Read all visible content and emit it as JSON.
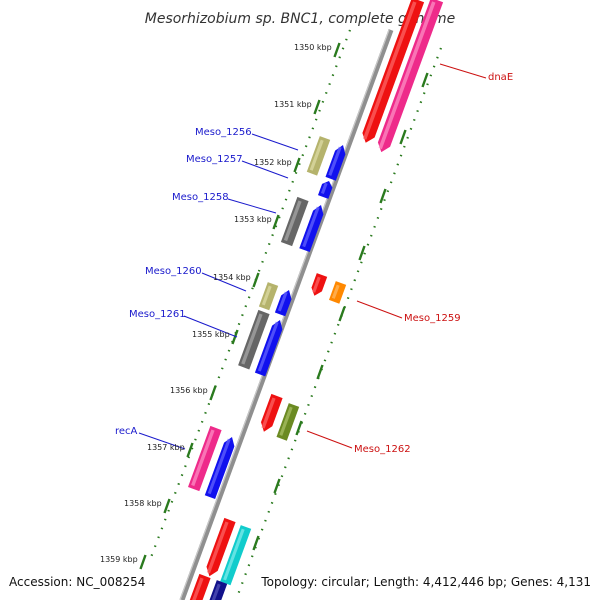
{
  "title": "Mesorhizobium sp. BNC1, complete genome",
  "accession": "Accession: NC_008254",
  "topology": "Topology: circular; Length: 4,412,446 bp; Genes: 4,131",
  "colors": {
    "backbone": "#888888",
    "tick": "#2a7a1e",
    "label_left": "#1a1acc",
    "label_right": "#cc1111"
  },
  "ruler": [
    "1350 kbp",
    "1351 kbp",
    "1352 kbp",
    "1353 kbp",
    "1354 kbp",
    "1355 kbp",
    "1356 kbp",
    "1357 kbp",
    "1358 kbp",
    "1359 kbp"
  ],
  "gene_labels": {
    "left": [
      "Meso_1256",
      "Meso_1257",
      "Meso_1258",
      "Meso_1260",
      "Meso_1261",
      "recA"
    ],
    "right": [
      "dnaE",
      "Meso_1259",
      "Meso_1262"
    ]
  }
}
